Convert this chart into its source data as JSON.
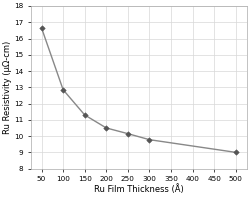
{
  "x": [
    50,
    100,
    150,
    200,
    250,
    300,
    500
  ],
  "y": [
    16.65,
    12.85,
    11.3,
    10.5,
    10.15,
    9.78,
    9.0
  ],
  "xlabel": "Ru Film Thickness (Å)",
  "ylabel": "Ru Resistivity (μΩ-cm)",
  "xlim": [
    25,
    525
  ],
  "ylim": [
    8,
    18
  ],
  "xticks": [
    50,
    100,
    150,
    200,
    250,
    300,
    350,
    400,
    450,
    500
  ],
  "yticks": [
    8,
    9,
    10,
    11,
    12,
    13,
    14,
    15,
    16,
    17,
    18
  ],
  "line_color": "#888888",
  "marker_color": "#555555",
  "grid_color": "#d8d8d8",
  "bg_color": "#ffffff",
  "fig_bg_color": "#ffffff",
  "label_fontsize": 6.0,
  "tick_fontsize": 5.2,
  "linewidth": 1.0,
  "markersize": 2.8
}
